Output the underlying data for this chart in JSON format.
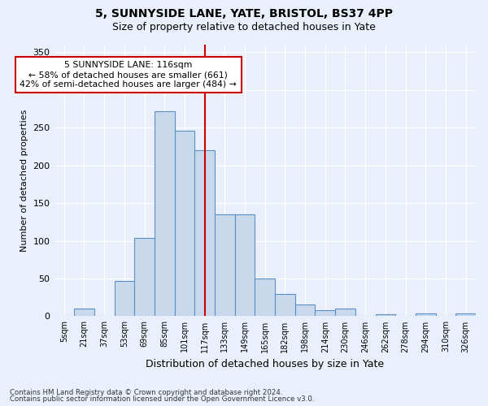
{
  "title1": "5, SUNNYSIDE LANE, YATE, BRISTOL, BS37 4PP",
  "title2": "Size of property relative to detached houses in Yate",
  "xlabel": "Distribution of detached houses by size in Yate",
  "ylabel": "Number of detached properties",
  "categories": [
    "5sqm",
    "21sqm",
    "37sqm",
    "53sqm",
    "69sqm",
    "85sqm",
    "101sqm",
    "117sqm",
    "133sqm",
    "149sqm",
    "165sqm",
    "182sqm",
    "198sqm",
    "214sqm",
    "230sqm",
    "246sqm",
    "262sqm",
    "278sqm",
    "294sqm",
    "310sqm",
    "326sqm"
  ],
  "bar_values": [
    0,
    10,
    0,
    47,
    104,
    272,
    246,
    220,
    135,
    135,
    50,
    30,
    15,
    8,
    10,
    0,
    3,
    0,
    4,
    0,
    4
  ],
  "bar_color": "#c9d9ec",
  "bar_edge_color": "#5b8fc9",
  "vline_x_idx": 7,
  "vline_color": "#cc0000",
  "annotation_text": "5 SUNNYSIDE LANE: 116sqm\n← 58% of detached houses are smaller (661)\n42% of semi-detached houses are larger (484) →",
  "annotation_box_color": "#ffffff",
  "annotation_box_edge": "#cc0000",
  "ylim": [
    0,
    360
  ],
  "yticks": [
    0,
    50,
    100,
    150,
    200,
    250,
    300,
    350
  ],
  "footer1": "Contains HM Land Registry data © Crown copyright and database right 2024.",
  "footer2": "Contains public sector information licensed under the Open Government Licence v3.0.",
  "bg_color": "#eaf0fb",
  "plot_bg_color": "#eaf0fb"
}
